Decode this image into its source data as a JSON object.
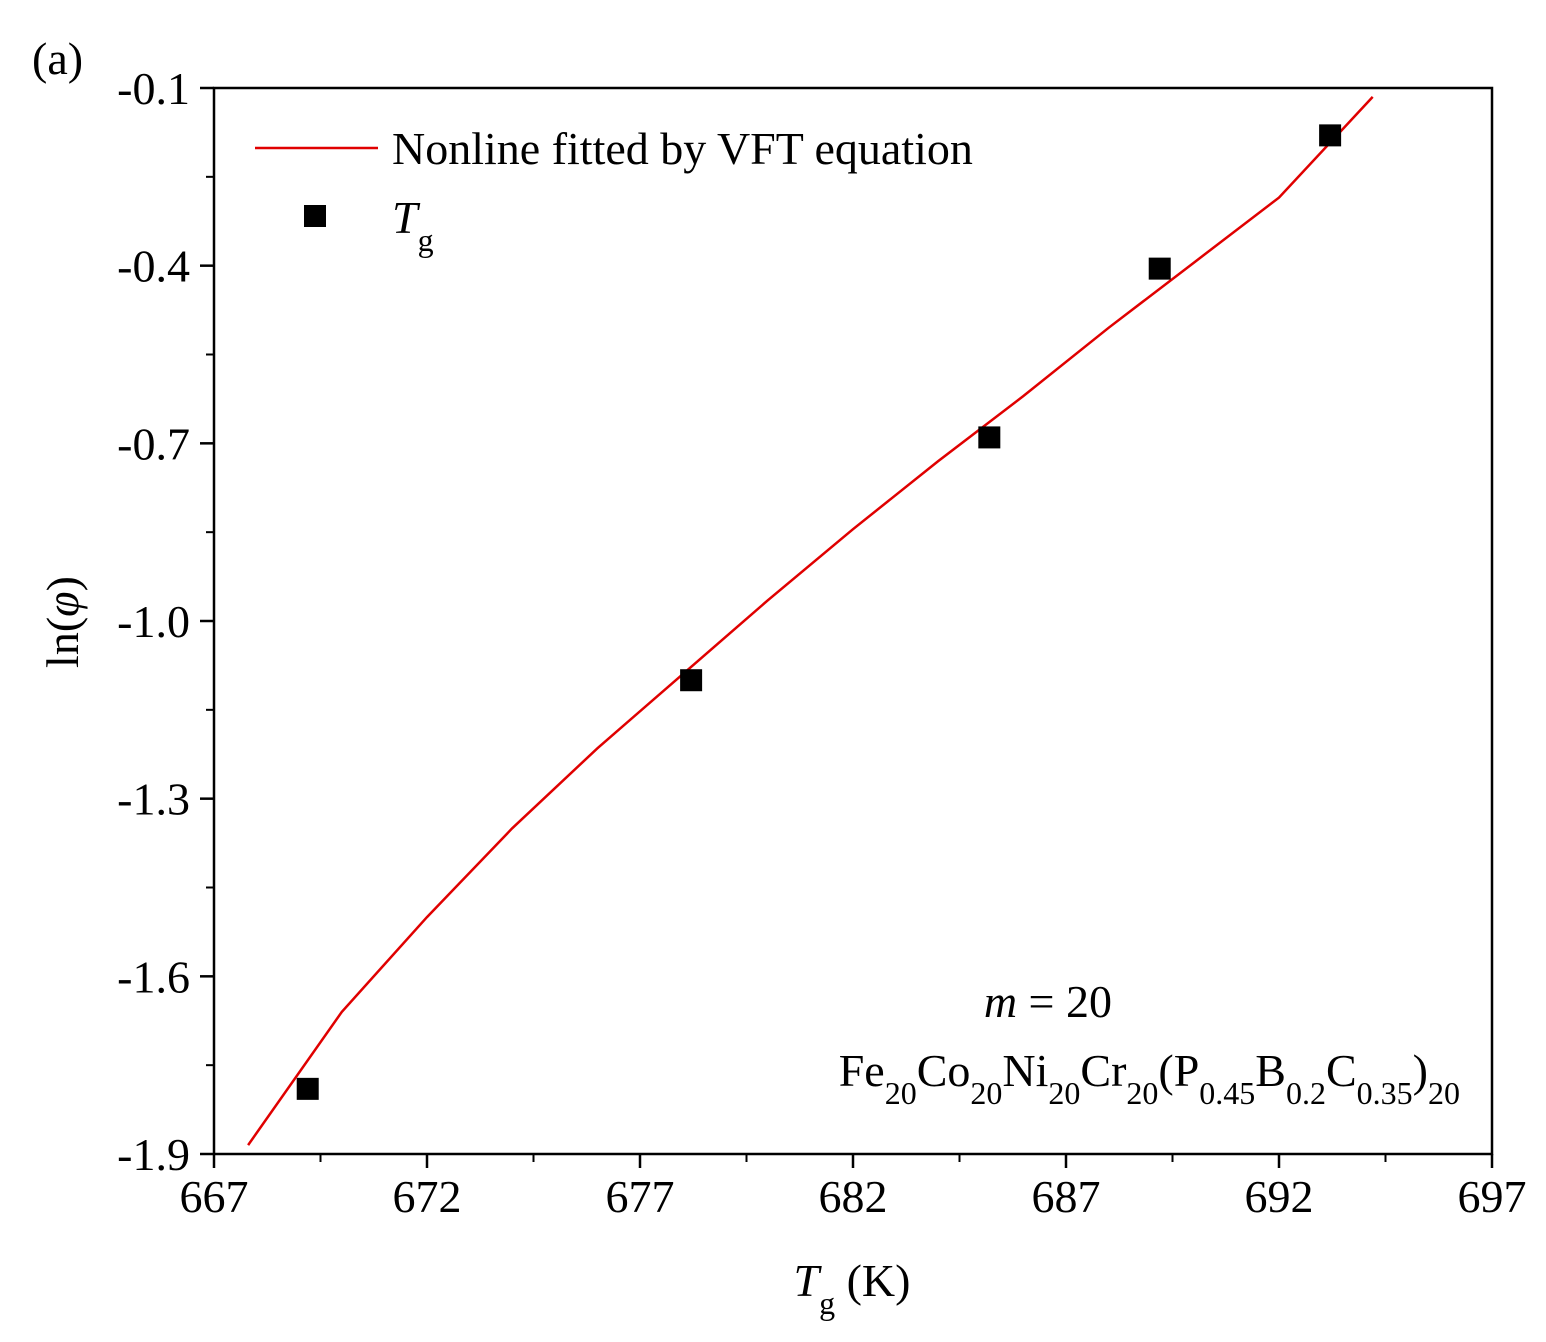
{
  "chart_data": {
    "type": "scatter",
    "panel_label": "(a)",
    "xlabel": {
      "main": "T",
      "sub": "g",
      "unit": " (K)"
    },
    "ylabel": {
      "pre": "ln(",
      "sym": "φ",
      "post": ")"
    },
    "xlim": [
      667,
      697
    ],
    "ylim": [
      -1.9,
      -0.1
    ],
    "xticks": [
      667,
      672,
      677,
      682,
      687,
      692,
      697
    ],
    "xtick_labels": [
      "667",
      "672",
      "677",
      "682",
      "687",
      "692",
      "697"
    ],
    "yticks": [
      -1.9,
      -1.6,
      -1.3,
      -1.0,
      -0.7,
      -0.4,
      -0.1
    ],
    "ytick_labels": [
      "-1.9",
      "-1.6",
      "-1.3",
      "-1.0",
      "-0.7",
      "-0.4",
      "-0.1"
    ],
    "series": [
      {
        "name": "Tg",
        "kind": "points",
        "marker": "square",
        "color": "#000000",
        "x": [
          669.2,
          678.2,
          685.2,
          689.2,
          693.2
        ],
        "y": [
          -1.79,
          -1.1,
          -0.69,
          -0.405,
          -0.18
        ]
      },
      {
        "name": "Nonline fitted by VFT equation",
        "kind": "line",
        "color": "#e00000",
        "x": [
          667.8,
          670,
          672,
          674,
          676,
          678,
          680,
          682,
          684,
          686,
          688,
          690,
          692,
          694.2
        ],
        "y": [
          -1.885,
          -1.66,
          -1.5,
          -1.35,
          -1.215,
          -1.09,
          -0.965,
          -0.845,
          -0.73,
          -0.62,
          -0.505,
          -0.395,
          -0.285,
          -0.115
        ]
      }
    ],
    "legend": {
      "position": "top-left",
      "line_label": "Nonline fitted by VFT equation",
      "point_label": {
        "main": "T",
        "sub": "g"
      }
    },
    "annotations": {
      "m_label": {
        "var": "m",
        "rest": " = 20"
      },
      "composition": [
        {
          "t": "Fe",
          "s": false
        },
        {
          "t": "20",
          "s": true
        },
        {
          "t": "Co",
          "s": false
        },
        {
          "t": "20",
          "s": true
        },
        {
          "t": "Ni",
          "s": false
        },
        {
          "t": "20",
          "s": true
        },
        {
          "t": "Cr",
          "s": false
        },
        {
          "t": "20",
          "s": true
        },
        {
          "t": "(P",
          "s": false
        },
        {
          "t": "0.45",
          "s": true
        },
        {
          "t": "B",
          "s": false
        },
        {
          "t": "0.2",
          "s": true
        },
        {
          "t": "C",
          "s": false
        },
        {
          "t": "0.35",
          "s": true
        },
        {
          "t": ")",
          "s": false
        },
        {
          "t": "20",
          "s": true
        }
      ]
    }
  }
}
